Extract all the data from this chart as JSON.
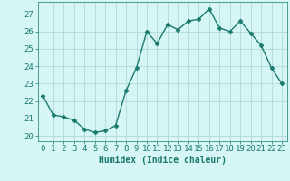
{
  "x": [
    0,
    1,
    2,
    3,
    4,
    5,
    6,
    7,
    8,
    9,
    10,
    11,
    12,
    13,
    14,
    15,
    16,
    17,
    18,
    19,
    20,
    21,
    22,
    23
  ],
  "y": [
    22.3,
    21.2,
    21.1,
    20.9,
    20.4,
    20.2,
    20.3,
    20.6,
    22.6,
    23.9,
    26.0,
    25.3,
    26.4,
    26.1,
    26.6,
    26.7,
    27.3,
    26.2,
    26.0,
    26.6,
    25.9,
    25.2,
    23.9,
    23.0
  ],
  "line_color": "#1a7a6e",
  "marker": "D",
  "marker_size": 2.5,
  "bg_color": "#d6f5f5",
  "grid_color": "#b0d8d8",
  "xlabel": "Humidex (Indice chaleur)",
  "ylabel_ticks": [
    20,
    21,
    22,
    23,
    24,
    25,
    26,
    27
  ],
  "xlim": [
    -0.5,
    23.5
  ],
  "ylim": [
    19.7,
    27.7
  ],
  "xlabel_fontsize": 7,
  "tick_fontsize": 6.5,
  "line_width": 1.0,
  "font_family": "monospace"
}
